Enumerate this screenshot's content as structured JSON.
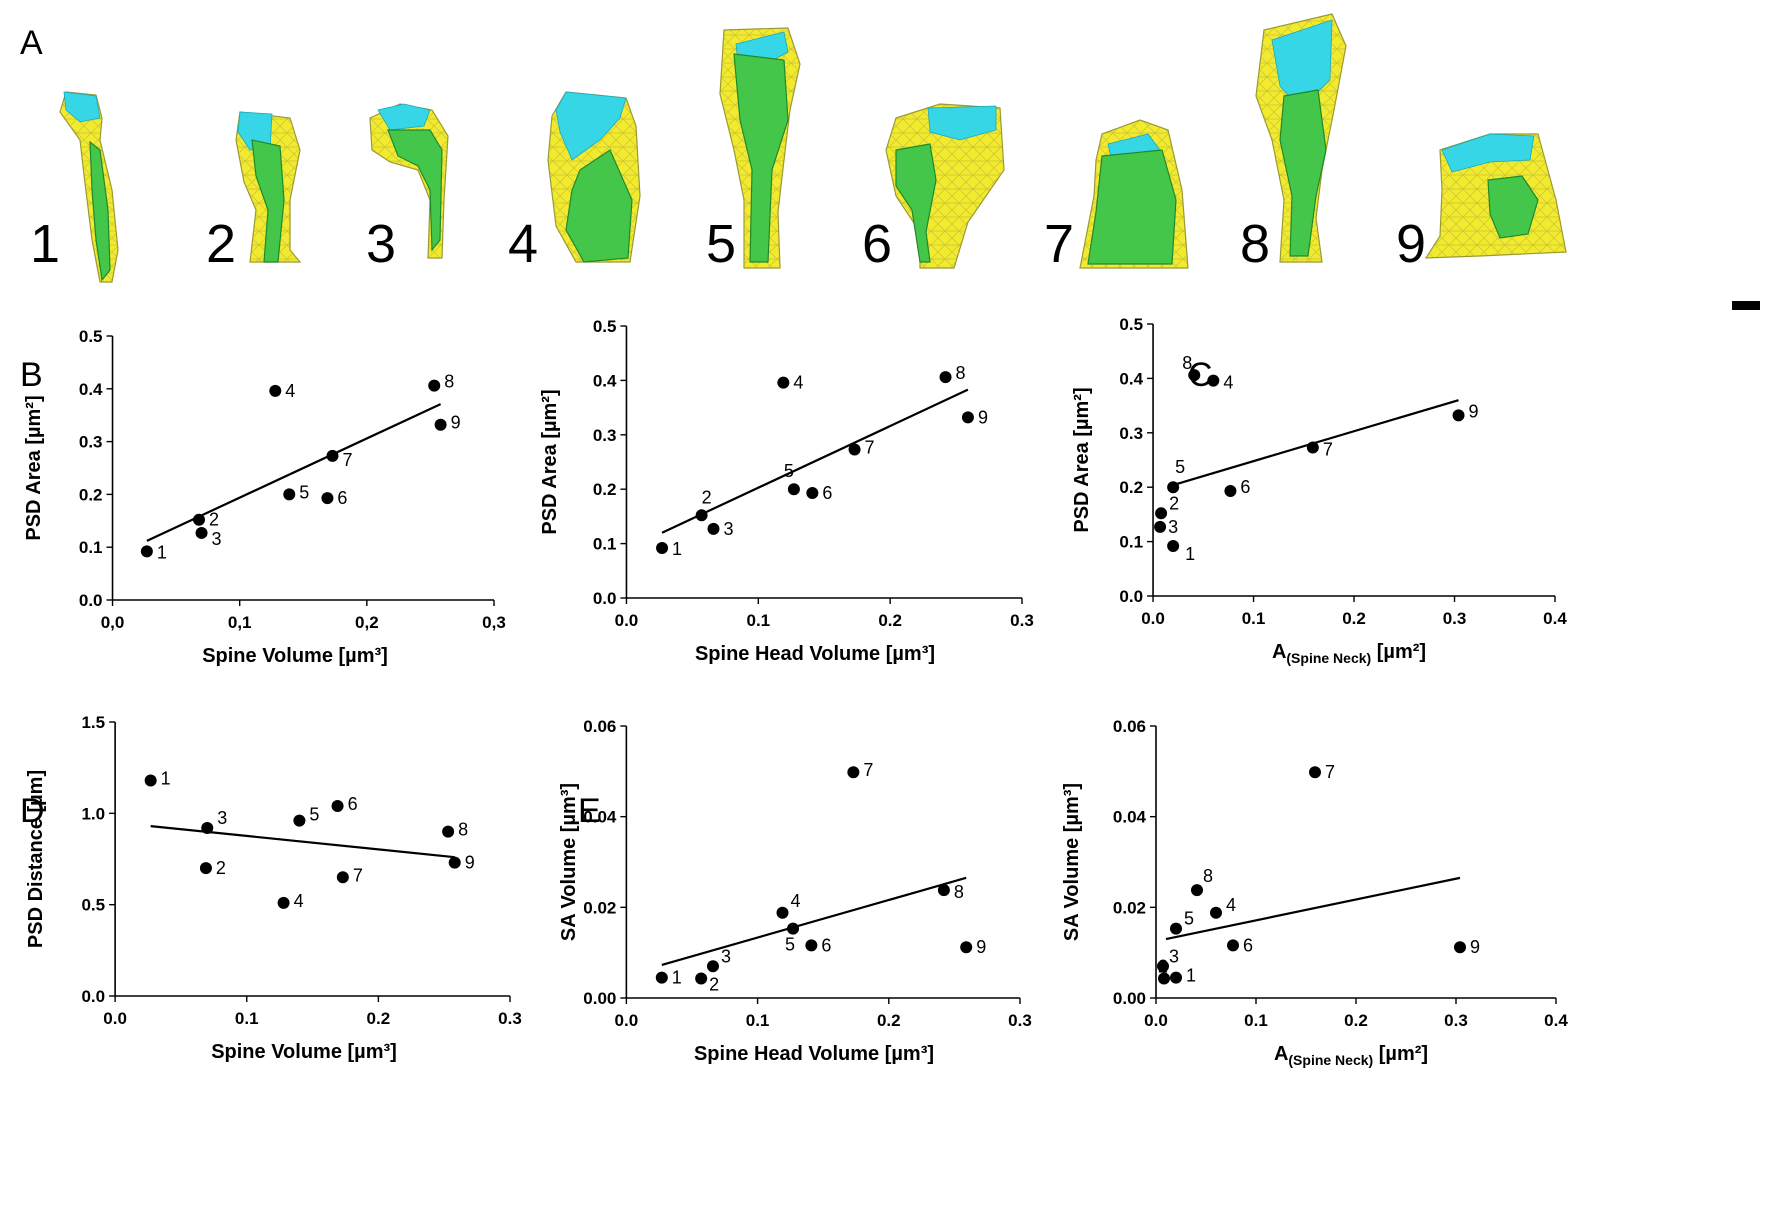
{
  "panel_letters": {
    "a": "A",
    "b": "B",
    "c": "C",
    "d": "D",
    "e": "E"
  },
  "spines": {
    "labels": [
      "1",
      "2",
      "3",
      "4",
      "5",
      "6",
      "7",
      "8",
      "9"
    ],
    "colors": {
      "membrane": "#f2ea2e",
      "spine_apparatus": "#43c64a",
      "psd": "#36d6e6",
      "mesh_line": "#9a9a32",
      "scale_bar": "#000000"
    }
  },
  "chart_data": [
    {
      "id": "B1",
      "type": "scatter",
      "xlabel": "Spine Volume [µm³]",
      "ylabel": "PSD Area [µm²]",
      "xlim": [
        0,
        0.3
      ],
      "ylim": [
        0,
        0.5
      ],
      "xticks": [
        "0,0",
        "0,1",
        "0,2",
        "0,3"
      ],
      "yticks": [
        "0.0",
        "0.1",
        "0.2",
        "0.3",
        "0.4",
        "0.5"
      ],
      "labels": [
        "1",
        "2",
        "3",
        "4",
        "5",
        "6",
        "7",
        "8",
        "9"
      ],
      "x": [
        0.027,
        0.068,
        0.07,
        0.128,
        0.139,
        0.169,
        0.173,
        0.253,
        0.258
      ],
      "y": [
        0.092,
        0.152,
        0.127,
        0.396,
        0.2,
        0.193,
        0.273,
        0.406,
        0.332
      ],
      "fit": {
        "x": [
          0.027,
          0.258
        ],
        "y": [
          0.112,
          0.371
        ]
      }
    },
    {
      "id": "B2",
      "type": "scatter",
      "xlabel": "Spine Head Volume [µm³]",
      "ylabel": "PSD Area [µm²]",
      "xlim": [
        0,
        0.3
      ],
      "ylim": [
        0,
        0.5
      ],
      "xticks": [
        "0.0",
        "0.1",
        "0.2",
        "0.3"
      ],
      "yticks": [
        "0.0",
        "0.1",
        "0.2",
        "0.3",
        "0.4",
        "0.5"
      ],
      "labels": [
        "1",
        "2",
        "3",
        "4",
        "5",
        "6",
        "7",
        "8",
        "9"
      ],
      "x": [
        0.027,
        0.057,
        0.066,
        0.119,
        0.127,
        0.141,
        0.173,
        0.242,
        0.259
      ],
      "y": [
        0.092,
        0.152,
        0.127,
        0.396,
        0.2,
        0.193,
        0.273,
        0.406,
        0.332
      ],
      "fit": {
        "x": [
          0.027,
          0.259
        ],
        "y": [
          0.12,
          0.383
        ]
      }
    },
    {
      "id": "C1",
      "type": "scatter",
      "xlabel_main": "A",
      "xlabel_sub": "(Spine Neck)",
      "xlabel_rest": " [µm²]",
      "ylabel": "PSD Area [µm²]",
      "xlim": [
        0,
        0.4
      ],
      "ylim": [
        0,
        0.5
      ],
      "xticks": [
        "0.0",
        "0.1",
        "0.2",
        "0.3",
        "0.4"
      ],
      "yticks": [
        "0.0",
        "0.1",
        "0.2",
        "0.3",
        "0.4",
        "0.5"
      ],
      "labels": [
        "1",
        "2",
        "3",
        "4",
        "5",
        "6",
        "7",
        "8",
        "9"
      ],
      "x": [
        0.02,
        0.008,
        0.007,
        0.06,
        0.02,
        0.077,
        0.159,
        0.041,
        0.304
      ],
      "y": [
        0.092,
        0.152,
        0.127,
        0.396,
        0.2,
        0.193,
        0.273,
        0.406,
        0.332
      ],
      "fit": {
        "x": [
          0.02,
          0.304
        ],
        "y": [
          0.204,
          0.36
        ]
      }
    },
    {
      "id": "D",
      "type": "scatter",
      "xlabel": "Spine Volume [µm³]",
      "ylabel": "PSD Distance [µm]",
      "xlim": [
        0,
        0.3
      ],
      "ylim": [
        0,
        1.5
      ],
      "xticks": [
        "0.0",
        "0.1",
        "0.2",
        "0.3"
      ],
      "yticks": [
        "0.0",
        "0.5",
        "1.0",
        "1.5"
      ],
      "labels": [
        "1",
        "2",
        "3",
        "4",
        "5",
        "6",
        "7",
        "8",
        "9"
      ],
      "x": [
        0.027,
        0.069,
        0.07,
        0.128,
        0.14,
        0.169,
        0.173,
        0.253,
        0.258
      ],
      "y": [
        1.18,
        0.7,
        0.92,
        0.51,
        0.96,
        1.04,
        0.65,
        0.9,
        0.73
      ],
      "fit": {
        "x": [
          0.027,
          0.258
        ],
        "y": [
          0.93,
          0.76
        ]
      }
    },
    {
      "id": "E1",
      "type": "scatter",
      "xlabel": "Spine Head Volume [µm³]",
      "ylabel": "SA Volume [µm³]",
      "xlim": [
        0,
        0.3
      ],
      "ylim": [
        0,
        0.06
      ],
      "xticks": [
        "0.0",
        "0.1",
        "0.2",
        "0.3"
      ],
      "yticks": [
        "0.00",
        "0.02",
        "0.04",
        "0.06"
      ],
      "labels": [
        "1",
        "2",
        "3",
        "4",
        "5",
        "6",
        "7",
        "8",
        "9"
      ],
      "x": [
        0.027,
        0.057,
        0.066,
        0.119,
        0.127,
        0.141,
        0.173,
        0.242,
        0.259
      ],
      "y": [
        0.0045,
        0.0043,
        0.007,
        0.0188,
        0.0153,
        0.0116,
        0.0498,
        0.0238,
        0.0112
      ],
      "fit": {
        "x": [
          0.027,
          0.259
        ],
        "y": [
          0.0073,
          0.0265
        ]
      }
    },
    {
      "id": "E2",
      "type": "scatter",
      "xlabel_main": "A",
      "xlabel_sub": "(Spine Neck)",
      "xlabel_rest": " [µm²]",
      "ylabel": "SA Volume [µm³]",
      "xlim": [
        0,
        0.4
      ],
      "ylim": [
        0,
        0.06
      ],
      "xticks": [
        "0.0",
        "0.1",
        "0.2",
        "0.3",
        "0.4"
      ],
      "yticks": [
        "0.00",
        "0.02",
        "0.04",
        "0.06"
      ],
      "labels": [
        "1",
        "2",
        "3",
        "4",
        "5",
        "6",
        "7",
        "8",
        "9"
      ],
      "x": [
        0.02,
        0.008,
        0.007,
        0.06,
        0.02,
        0.077,
        0.159,
        0.041,
        0.304
      ],
      "y": [
        0.0045,
        0.0043,
        0.007,
        0.0188,
        0.0153,
        0.0116,
        0.0498,
        0.0238,
        0.0112
      ],
      "fit": {
        "x": [
          0.01,
          0.304
        ],
        "y": [
          0.013,
          0.0265
        ]
      }
    }
  ]
}
